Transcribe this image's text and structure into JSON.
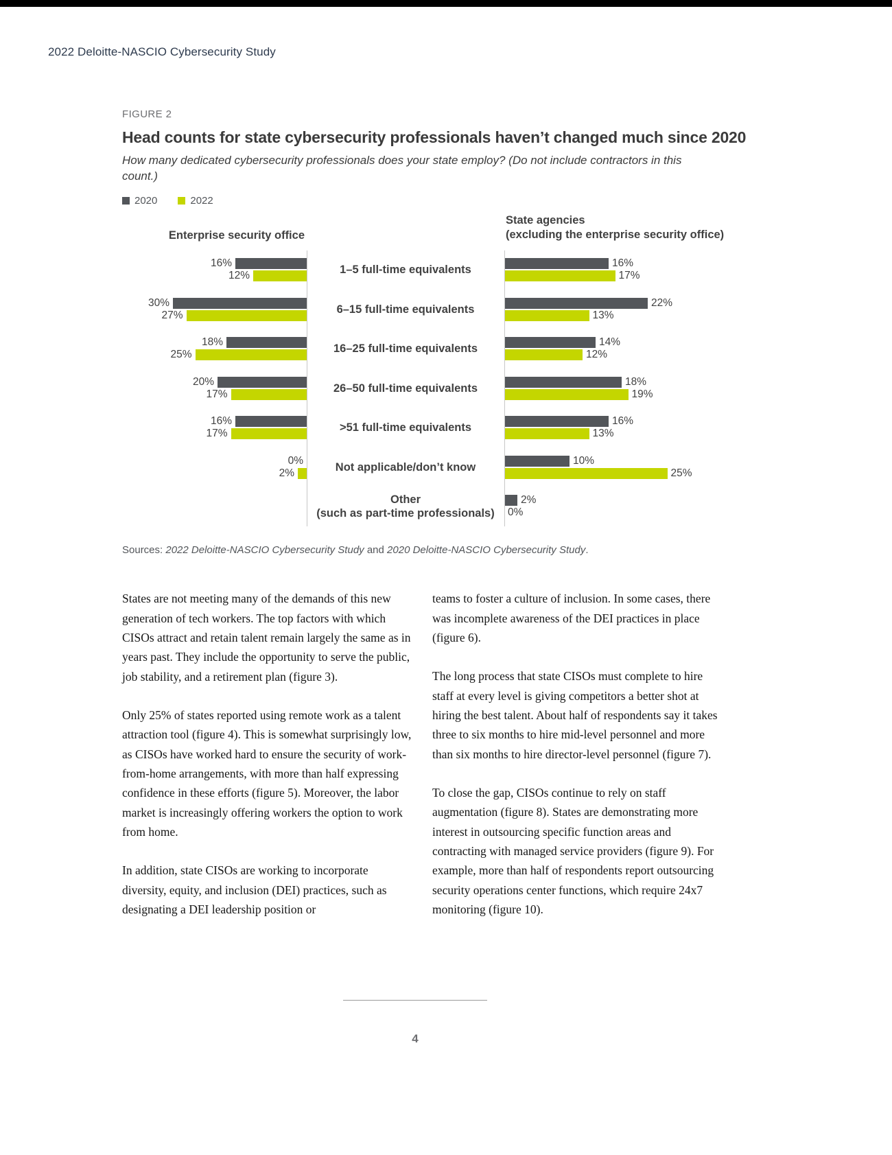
{
  "page": {
    "header": "2022 Deloitte-NASCIO Cybersecurity Study",
    "page_number": "4"
  },
  "figure": {
    "label": "FIGURE 2",
    "title": "Head counts for state cybersecurity professionals haven’t changed much since 2020",
    "subtitle": "How many dedicated cybersecurity professionals does your state employ? (Do not include contractors in this count.)",
    "legend": [
      {
        "label": "2020"
      },
      {
        "label": "2022"
      }
    ],
    "sources": {
      "prefix": "Sources: ",
      "study1": "2022 Deloitte-NASCIO Cybersecurity Study",
      "connector": " and ",
      "study2": "2020 Deloitte-NASCIO Cybersecurity Study",
      "suffix": "."
    }
  },
  "chart_data": {
    "type": "bar",
    "variant": "paired-horizontal-diverging",
    "left_panel_title": "Enterprise security office",
    "right_panel_title": "State agencies\n(excluding the enterprise security office)",
    "series_names": [
      "2020",
      "2022"
    ],
    "colors": {
      "2020": "#53565A",
      "2022": "#C4D600"
    },
    "unit": "%",
    "xlim": [
      0,
      30
    ],
    "rows": [
      {
        "category": "1–5 full-time equivalents",
        "enterprise": {
          "2020": 16,
          "2022": 12
        },
        "state_agencies": {
          "2020": 16,
          "2022": 17
        }
      },
      {
        "category": "6–15 full-time equivalents",
        "enterprise": {
          "2020": 30,
          "2022": 27
        },
        "state_agencies": {
          "2020": 22,
          "2022": 13
        }
      },
      {
        "category": "16–25 full-time equivalents",
        "enterprise": {
          "2020": 18,
          "2022": 25
        },
        "state_agencies": {
          "2020": 14,
          "2022": 12
        }
      },
      {
        "category": "26–50 full-time equivalents",
        "enterprise": {
          "2020": 20,
          "2022": 17
        },
        "state_agencies": {
          "2020": 18,
          "2022": 19
        }
      },
      {
        "category": ">51 full-time equivalents",
        "enterprise": {
          "2020": 16,
          "2022": 17
        },
        "state_agencies": {
          "2020": 16,
          "2022": 13
        }
      },
      {
        "category": "Not applicable/don’t know",
        "enterprise": {
          "2020": 0,
          "2022": 2
        },
        "state_agencies": {
          "2020": 10,
          "2022": 25
        }
      },
      {
        "category": "Other\n(such as part-time professionals)",
        "enterprise": {
          "2020": null,
          "2022": null
        },
        "state_agencies": {
          "2020": 2,
          "2022": 0
        }
      }
    ]
  },
  "body": {
    "left_paragraphs": [
      "States are not meeting many of the demands of this new generation of tech workers. The top factors with which CISOs attract and retain talent remain largely the same as in years past. They include the opportunity to serve the public, job stability, and a retirement plan (figure 3).",
      "Only 25% of states reported using remote work as a talent attraction tool (figure 4). This is somewhat surprisingly low, as CISOs have worked hard to ensure the security of work-from-home arrangements, with more than half expressing confidence in these efforts (figure 5). Moreover, the labor market is increasingly offering workers the option to work from home.",
      "In addition, state CISOs are working to incorporate diversity, equity, and inclusion (DEI) practices, such as designating a DEI leadership position or"
    ],
    "right_paragraphs": [
      "teams to foster a culture of inclusion. In some cases, there was incomplete awareness of the DEI practices in place (figure 6).",
      "The long process that state CISOs must complete to hire staff at every level is giving competitors a better shot at hiring the best talent. About half of respondents say it takes three to six months to hire mid-level personnel and more than six months to hire director-level personnel (figure 7).",
      "To close the gap, CISOs continue to rely on staff augmentation (figure 8). States are demonstrating more interest in outsourcing specific function areas and contracting with managed service providers (figure 9). For example, more than half of respondents report outsourcing security operations center functions, which require 24x7 monitoring (figure 10)."
    ]
  }
}
